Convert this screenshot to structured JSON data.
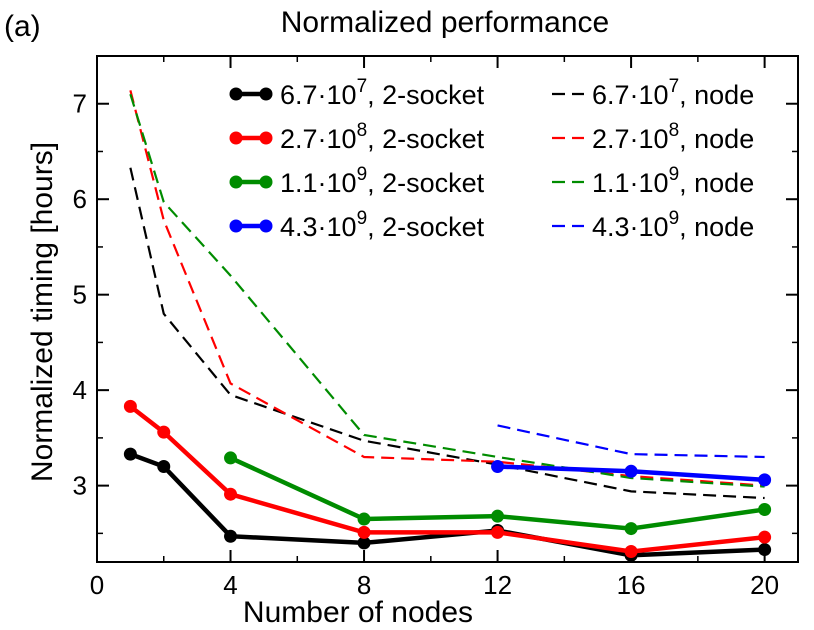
{
  "panel_label": "(a)",
  "chart_data": {
    "type": "line",
    "title": "Normalized performance",
    "xlabel": "Number of nodes",
    "ylabel": "Normalized timing [hours]",
    "xlim": [
      0,
      21
    ],
    "ylim": [
      2.2,
      7.5
    ],
    "xticks": [
      0,
      4,
      8,
      12,
      16,
      20
    ],
    "yticks": [
      3,
      4,
      5,
      6,
      7
    ],
    "grid": false,
    "legend_position": "top-right",
    "series": [
      {
        "name": "6.7·10^7, 2-socket",
        "label_base": "6.7·10",
        "label_exp": "7",
        "label_suffix": ", 2-socket",
        "style": "solid-marker",
        "color": "#000000",
        "x": [
          1,
          2,
          4,
          8,
          12,
          16,
          20
        ],
        "y": [
          3.33,
          3.2,
          2.47,
          2.4,
          2.53,
          2.27,
          2.33
        ]
      },
      {
        "name": "2.7·10^8, 2-socket",
        "label_base": "2.7·10",
        "label_exp": "8",
        "label_suffix": ", 2-socket",
        "style": "solid-marker",
        "color": "#ff0000",
        "x": [
          1,
          2,
          4,
          8,
          12,
          16,
          20
        ],
        "y": [
          3.83,
          3.56,
          2.91,
          2.51,
          2.51,
          2.31,
          2.46
        ]
      },
      {
        "name": "1.1·10^9, 2-socket",
        "label_base": "1.1·10",
        "label_exp": "9",
        "label_suffix": ", 2-socket",
        "style": "solid-marker",
        "color": "#008c00",
        "x": [
          4,
          8,
          12,
          16,
          20
        ],
        "y": [
          3.29,
          2.65,
          2.68,
          2.55,
          2.75
        ]
      },
      {
        "name": "4.3·10^9, 2-socket",
        "label_base": "4.3·10",
        "label_exp": "9",
        "label_suffix": ", 2-socket",
        "style": "solid-marker",
        "color": "#0000ff",
        "x": [
          12,
          16,
          20
        ],
        "y": [
          3.2,
          3.15,
          3.06
        ]
      },
      {
        "name": "6.7·10^7, node",
        "label_base": "6.7·10",
        "label_exp": "7",
        "label_suffix": ", node",
        "style": "dashed",
        "color": "#000000",
        "x": [
          1,
          2,
          4,
          8,
          12,
          16,
          20
        ],
        "y": [
          6.33,
          4.8,
          3.95,
          3.47,
          3.22,
          2.94,
          2.87
        ]
      },
      {
        "name": "2.7·10^8, node",
        "label_base": "2.7·10",
        "label_exp": "8",
        "label_suffix": ", node",
        "style": "dashed",
        "color": "#ff0000",
        "x": [
          1,
          2,
          4,
          8,
          12,
          16,
          20
        ],
        "y": [
          7.14,
          5.78,
          4.07,
          3.3,
          3.25,
          3.1,
          3.0
        ]
      },
      {
        "name": "1.1·10^9, node",
        "label_base": "1.1·10",
        "label_exp": "9",
        "label_suffix": ", node",
        "style": "dashed",
        "color": "#008c00",
        "x": [
          1,
          2,
          4,
          8,
          12,
          16,
          20
        ],
        "y": [
          7.1,
          5.97,
          5.2,
          3.53,
          3.3,
          3.08,
          2.99
        ]
      },
      {
        "name": "4.3·10^9, node",
        "label_base": "4.3·10",
        "label_exp": "9",
        "label_suffix": ", node",
        "style": "dashed",
        "color": "#0000ff",
        "x": [
          12,
          16,
          20
        ],
        "y": [
          3.63,
          3.33,
          3.3
        ]
      }
    ]
  }
}
